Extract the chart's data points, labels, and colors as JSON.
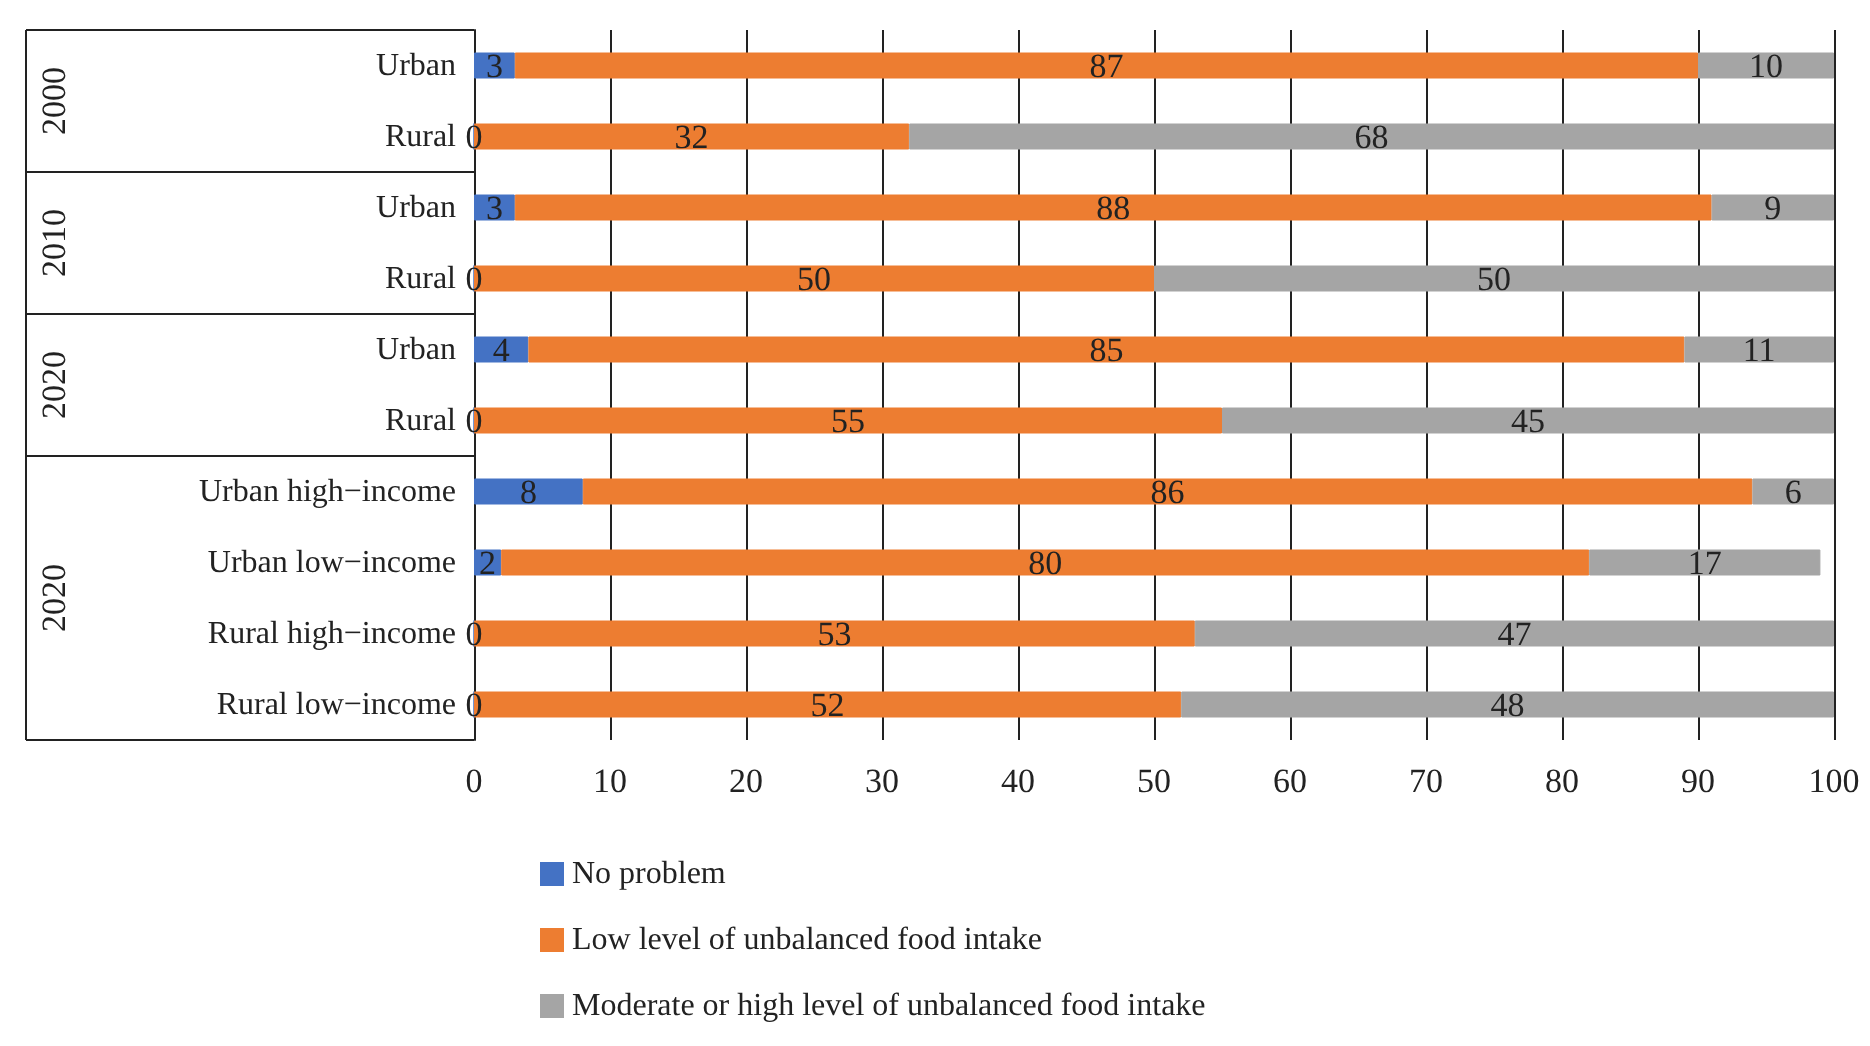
{
  "chart_data": {
    "type": "bar",
    "orientation": "horizontal",
    "stacked": true,
    "categories": [
      "Urban",
      "Rural",
      "Urban",
      "Rural",
      "Urban",
      "Rural",
      "Urban high−income",
      "Urban low−income",
      "Rural high−income",
      "Rural low−income"
    ],
    "series": [
      {
        "name": "No problem",
        "color": "#4472c4",
        "values": [
          3,
          0,
          3,
          0,
          4,
          0,
          8,
          2,
          0,
          0
        ]
      },
      {
        "name": "Low level of unbalanced food intake",
        "color": "#ed7d31",
        "values": [
          87,
          32,
          88,
          50,
          85,
          55,
          86,
          80,
          53,
          52
        ]
      },
      {
        "name": "Moderate or high level of unbalanced food intake",
        "color": "#a5a5a5",
        "values": [
          10,
          68,
          9,
          50,
          11,
          45,
          6,
          17,
          47,
          48
        ]
      }
    ],
    "xlim": [
      0,
      100
    ],
    "xticks": [
      0,
      10,
      20,
      30,
      40,
      50,
      60,
      70,
      80,
      90,
      100
    ],
    "annotations": [
      "2000",
      "2010",
      "2020",
      "2020"
    ],
    "data_labels": true,
    "grid": "x",
    "legend": "bottom"
  }
}
